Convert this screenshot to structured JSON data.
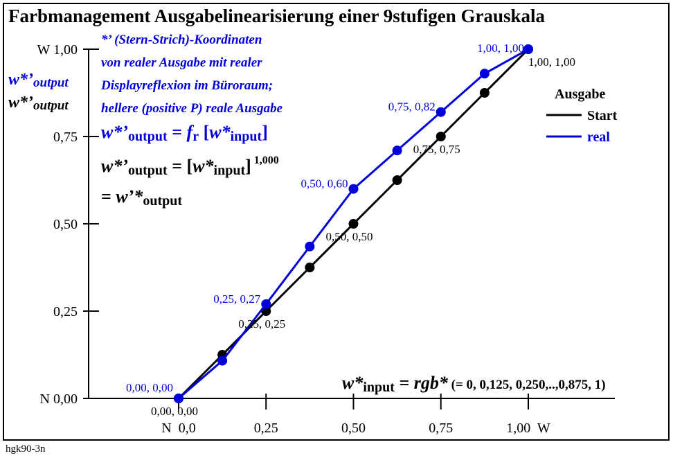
{
  "title": "Farbmanagement Ausgabelinearisierung einer 9stufigen Grauskala",
  "footer": "hgk90-3n",
  "notes": {
    "line1": "*’ (Stern-Strich)-Koordinaten",
    "line2": "von realer Ausgabe mit realer",
    "line3": "Displayreflexion im Büroraum;",
    "line4": "hellere (positive P) reale Ausgabe"
  },
  "left_labels": {
    "blue": "w*’output",
    "black": "w*’output"
  },
  "chart_data": {
    "type": "line",
    "xlim": [
      0,
      1
    ],
    "ylim": [
      0,
      1
    ],
    "x_ticks": [
      {
        "value": 0,
        "label": "N  0,0"
      },
      {
        "value": 0.25,
        "label": "0,25"
      },
      {
        "value": 0.5,
        "label": "0,50"
      },
      {
        "value": 0.75,
        "label": "0,75"
      },
      {
        "value": 1,
        "label": "1,00  W"
      }
    ],
    "y_ticks": [
      {
        "value": 0,
        "label": "N 0,00"
      },
      {
        "value": 0.25,
        "label": "0,25"
      },
      {
        "value": 0.5,
        "label": "0,50"
      },
      {
        "value": 0.75,
        "label": "0,75"
      },
      {
        "value": 1,
        "label": "W 1,00"
      }
    ],
    "legend": {
      "title": "Ausgabe",
      "position": "right"
    },
    "series": [
      {
        "name": "Start",
        "color": "#000000",
        "x": [
          0,
          0.125,
          0.25,
          0.375,
          0.5,
          0.625,
          0.75,
          0.875,
          1
        ],
        "y": [
          0,
          0.125,
          0.25,
          0.375,
          0.5,
          0.625,
          0.75,
          0.875,
          1
        ],
        "point_labels": [
          {
            "x": 0,
            "y": 0,
            "text": "0,00, 0,00"
          },
          {
            "x": 0.25,
            "y": 0.25,
            "text": "0,25, 0,25"
          },
          {
            "x": 0.5,
            "y": 0.5,
            "text": "0,50, 0,50"
          },
          {
            "x": 0.75,
            "y": 0.75,
            "text": "0,75, 0,75"
          },
          {
            "x": 1,
            "y": 1,
            "text": "1,00, 1,00"
          }
        ]
      },
      {
        "name": "real",
        "color": "#0000dd",
        "x": [
          0,
          0.125,
          0.25,
          0.375,
          0.5,
          0.625,
          0.75,
          0.875,
          1
        ],
        "y": [
          0,
          0.108,
          0.27,
          0.435,
          0.6,
          0.71,
          0.82,
          0.93,
          1
        ],
        "point_labels": [
          {
            "x": 0,
            "y": 0,
            "text": "0,00, 0,00"
          },
          {
            "x": 0.25,
            "y": 0.27,
            "text": "0,25, 0,27"
          },
          {
            "x": 0.5,
            "y": 0.6,
            "text": "0,50, 0,60"
          },
          {
            "x": 0.75,
            "y": 0.82,
            "text": "0,75, 0,82"
          },
          {
            "x": 1,
            "y": 1,
            "text": "1,00, 1,00"
          }
        ]
      }
    ]
  }
}
